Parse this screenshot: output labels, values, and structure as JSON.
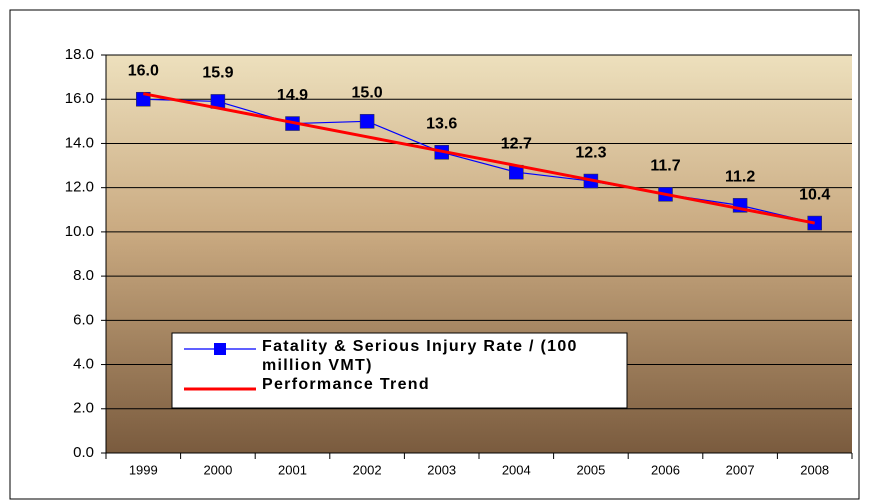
{
  "chart_data": {
    "type": "line",
    "categories": [
      "1999",
      "2000",
      "2001",
      "2002",
      "2003",
      "2004",
      "2005",
      "2006",
      "2007",
      "2008"
    ],
    "series": [
      {
        "name": "Fatality & Serious Injury Rate / (100 million VMT)",
        "color": "#0000ff",
        "values": [
          16.0,
          15.9,
          14.9,
          15.0,
          13.6,
          12.7,
          12.3,
          11.7,
          11.2,
          10.4
        ],
        "value_labels": [
          "16.0",
          "15.9",
          "14.9",
          "15.0",
          "13.6",
          "12.7",
          "12.3",
          "11.7",
          "11.2",
          "10.4"
        ]
      },
      {
        "name": "Performance Trend",
        "color": "#ff0000",
        "values": [
          16.25,
          15.6,
          14.95,
          14.3,
          13.65,
          13.0,
          12.35,
          11.7,
          11.05,
          10.4
        ]
      }
    ],
    "ylim": [
      0,
      18
    ],
    "yticks": [
      {
        "value": 0,
        "label": "0.0"
      },
      {
        "value": 2,
        "label": "2.0"
      },
      {
        "value": 4,
        "label": "4.0"
      },
      {
        "value": 6,
        "label": "6.0"
      },
      {
        "value": 8,
        "label": "8.0"
      },
      {
        "value": 10,
        "label": "10.0"
      },
      {
        "value": 12,
        "label": "12.0"
      },
      {
        "value": 14,
        "label": "14.0"
      },
      {
        "value": 16,
        "label": "16.0"
      },
      {
        "value": 18,
        "label": "18.0"
      }
    ],
    "grid": true
  }
}
